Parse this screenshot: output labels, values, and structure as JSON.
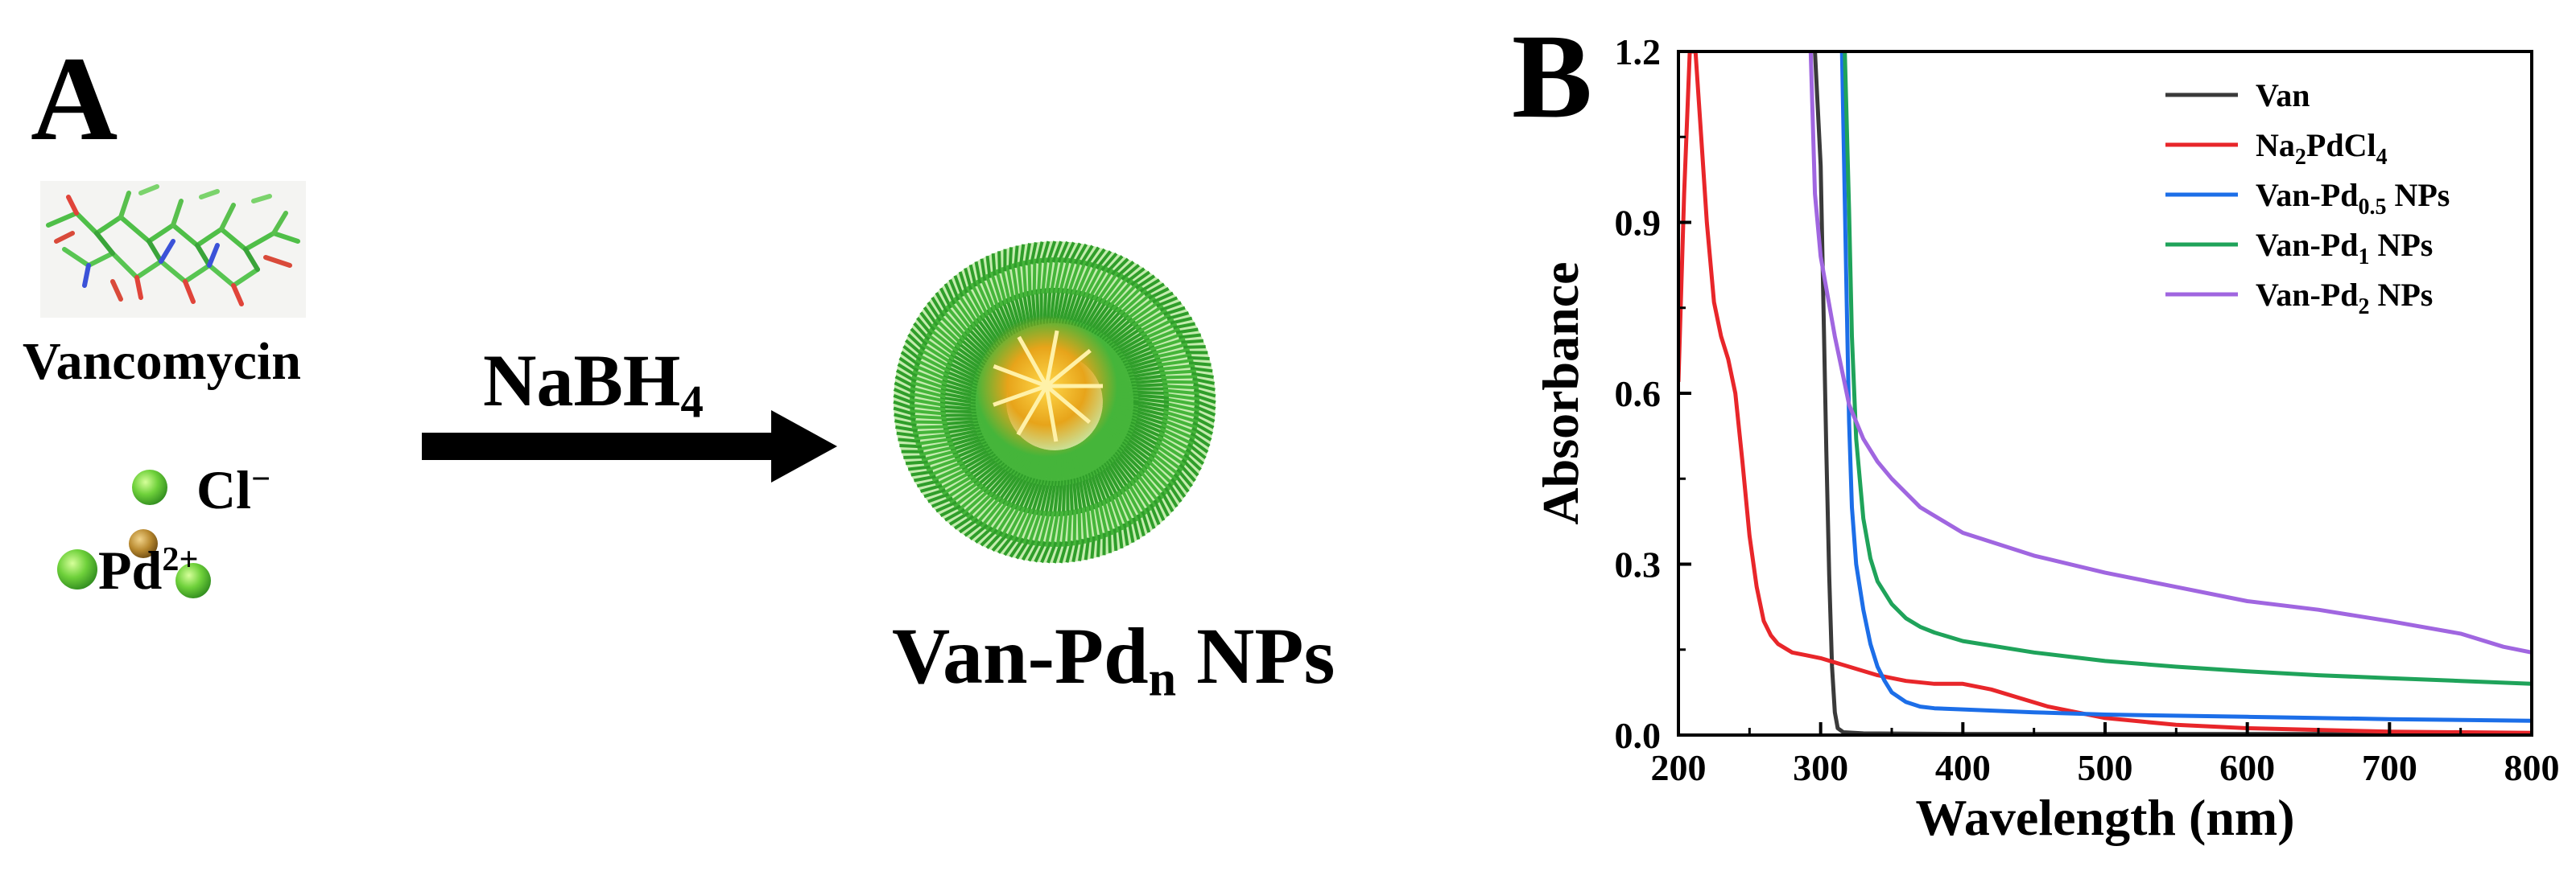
{
  "panel_a": {
    "letter": "A",
    "molecule_label": "Vancomycin",
    "chloride_label": "Cl",
    "chloride_charge": "−",
    "palladium_label": "Pd",
    "palladium_charge": "2+",
    "reagent_label": "NaBH",
    "reagent_subscript": "4",
    "product_label_main": "Van-Pd",
    "product_label_sub": "n",
    "product_label_tail": " NPs"
  },
  "colors": {
    "Van": "#3a3a3a",
    "Na2PdCl4": "#e8262a",
    "Van-Pd0.5": "#1c6ee8",
    "Van-Pd1": "#1fa35a",
    "Van-Pd2": "#a066e0",
    "leaf_green": "#45b53a",
    "core_gold": "#e0a20e"
  },
  "chart_data": {
    "type": "line",
    "panel_letter": "B",
    "title": "",
    "xlabel": "Wavelength (nm)",
    "ylabel": "Absorbance",
    "xlim": [
      200,
      800
    ],
    "ylim": [
      0,
      1.2
    ],
    "xticks": [
      200,
      300,
      400,
      500,
      600,
      700,
      800
    ],
    "yticks": [
      0.0,
      0.3,
      0.6,
      0.9,
      1.2
    ],
    "ytick_labels": [
      "0.0",
      "0.3",
      "0.6",
      "0.9",
      "1.2"
    ],
    "legend_position": "top-right",
    "series": [
      {
        "name": "Van",
        "legend": [
          "Van",
          "",
          ""
        ],
        "x": [
          296,
          300,
          302,
          304,
          306,
          308,
          310,
          312,
          316,
          330,
          400,
          500,
          600,
          700,
          800
        ],
        "y": [
          1.2,
          1.0,
          0.75,
          0.5,
          0.28,
          0.12,
          0.04,
          0.012,
          0.005,
          0.003,
          0.002,
          0.002,
          0.002,
          0.002,
          0.002
        ]
      },
      {
        "name": "Na2PdCl4",
        "legend": [
          "Na",
          "2",
          "PdCl"
        ],
        "legend_sub2": "4",
        "x": [
          200,
          204,
          208,
          212,
          216,
          220,
          225,
          230,
          235,
          240,
          245,
          250,
          255,
          260,
          265,
          270,
          280,
          290,
          300,
          320,
          340,
          360,
          380,
          400,
          420,
          440,
          460,
          480,
          500,
          550,
          600,
          700,
          800
        ],
        "y": [
          0.62,
          0.95,
          1.2,
          1.2,
          1.05,
          0.9,
          0.76,
          0.7,
          0.66,
          0.6,
          0.48,
          0.35,
          0.26,
          0.2,
          0.175,
          0.16,
          0.145,
          0.14,
          0.135,
          0.12,
          0.105,
          0.095,
          0.09,
          0.09,
          0.08,
          0.065,
          0.05,
          0.04,
          0.03,
          0.018,
          0.012,
          0.006,
          0.004
        ]
      },
      {
        "name": "Van-Pd0.5 NPs",
        "legend": [
          "Van-Pd",
          "0.5",
          " NPs"
        ],
        "x": [
          315,
          318,
          320,
          322,
          325,
          330,
          335,
          340,
          345,
          350,
          360,
          370,
          380,
          400,
          450,
          500,
          600,
          700,
          800
        ],
        "y": [
          1.2,
          0.8,
          0.55,
          0.4,
          0.3,
          0.22,
          0.16,
          0.12,
          0.095,
          0.075,
          0.058,
          0.05,
          0.047,
          0.045,
          0.04,
          0.036,
          0.032,
          0.028,
          0.025
        ]
      },
      {
        "name": "Van-Pd1 NPs",
        "legend": [
          "Van-Pd",
          "1",
          " NPs"
        ],
        "x": [
          317,
          320,
          322,
          325,
          330,
          335,
          340,
          350,
          360,
          370,
          380,
          400,
          450,
          500,
          550,
          600,
          650,
          700,
          750,
          800
        ],
        "y": [
          1.2,
          0.92,
          0.7,
          0.52,
          0.38,
          0.31,
          0.27,
          0.23,
          0.205,
          0.19,
          0.18,
          0.165,
          0.145,
          0.13,
          0.12,
          0.112,
          0.105,
          0.1,
          0.095,
          0.09
        ]
      },
      {
        "name": "Van-Pd2 NPs",
        "legend": [
          "Van-Pd",
          "2",
          " NPs"
        ],
        "x": [
          293,
          296,
          300,
          305,
          310,
          315,
          320,
          330,
          340,
          350,
          370,
          400,
          450,
          500,
          550,
          600,
          650,
          700,
          750,
          780,
          800
        ],
        "y": [
          1.2,
          0.95,
          0.84,
          0.77,
          0.7,
          0.64,
          0.58,
          0.52,
          0.48,
          0.45,
          0.4,
          0.355,
          0.315,
          0.285,
          0.26,
          0.235,
          0.22,
          0.2,
          0.178,
          0.155,
          0.145
        ]
      }
    ]
  }
}
